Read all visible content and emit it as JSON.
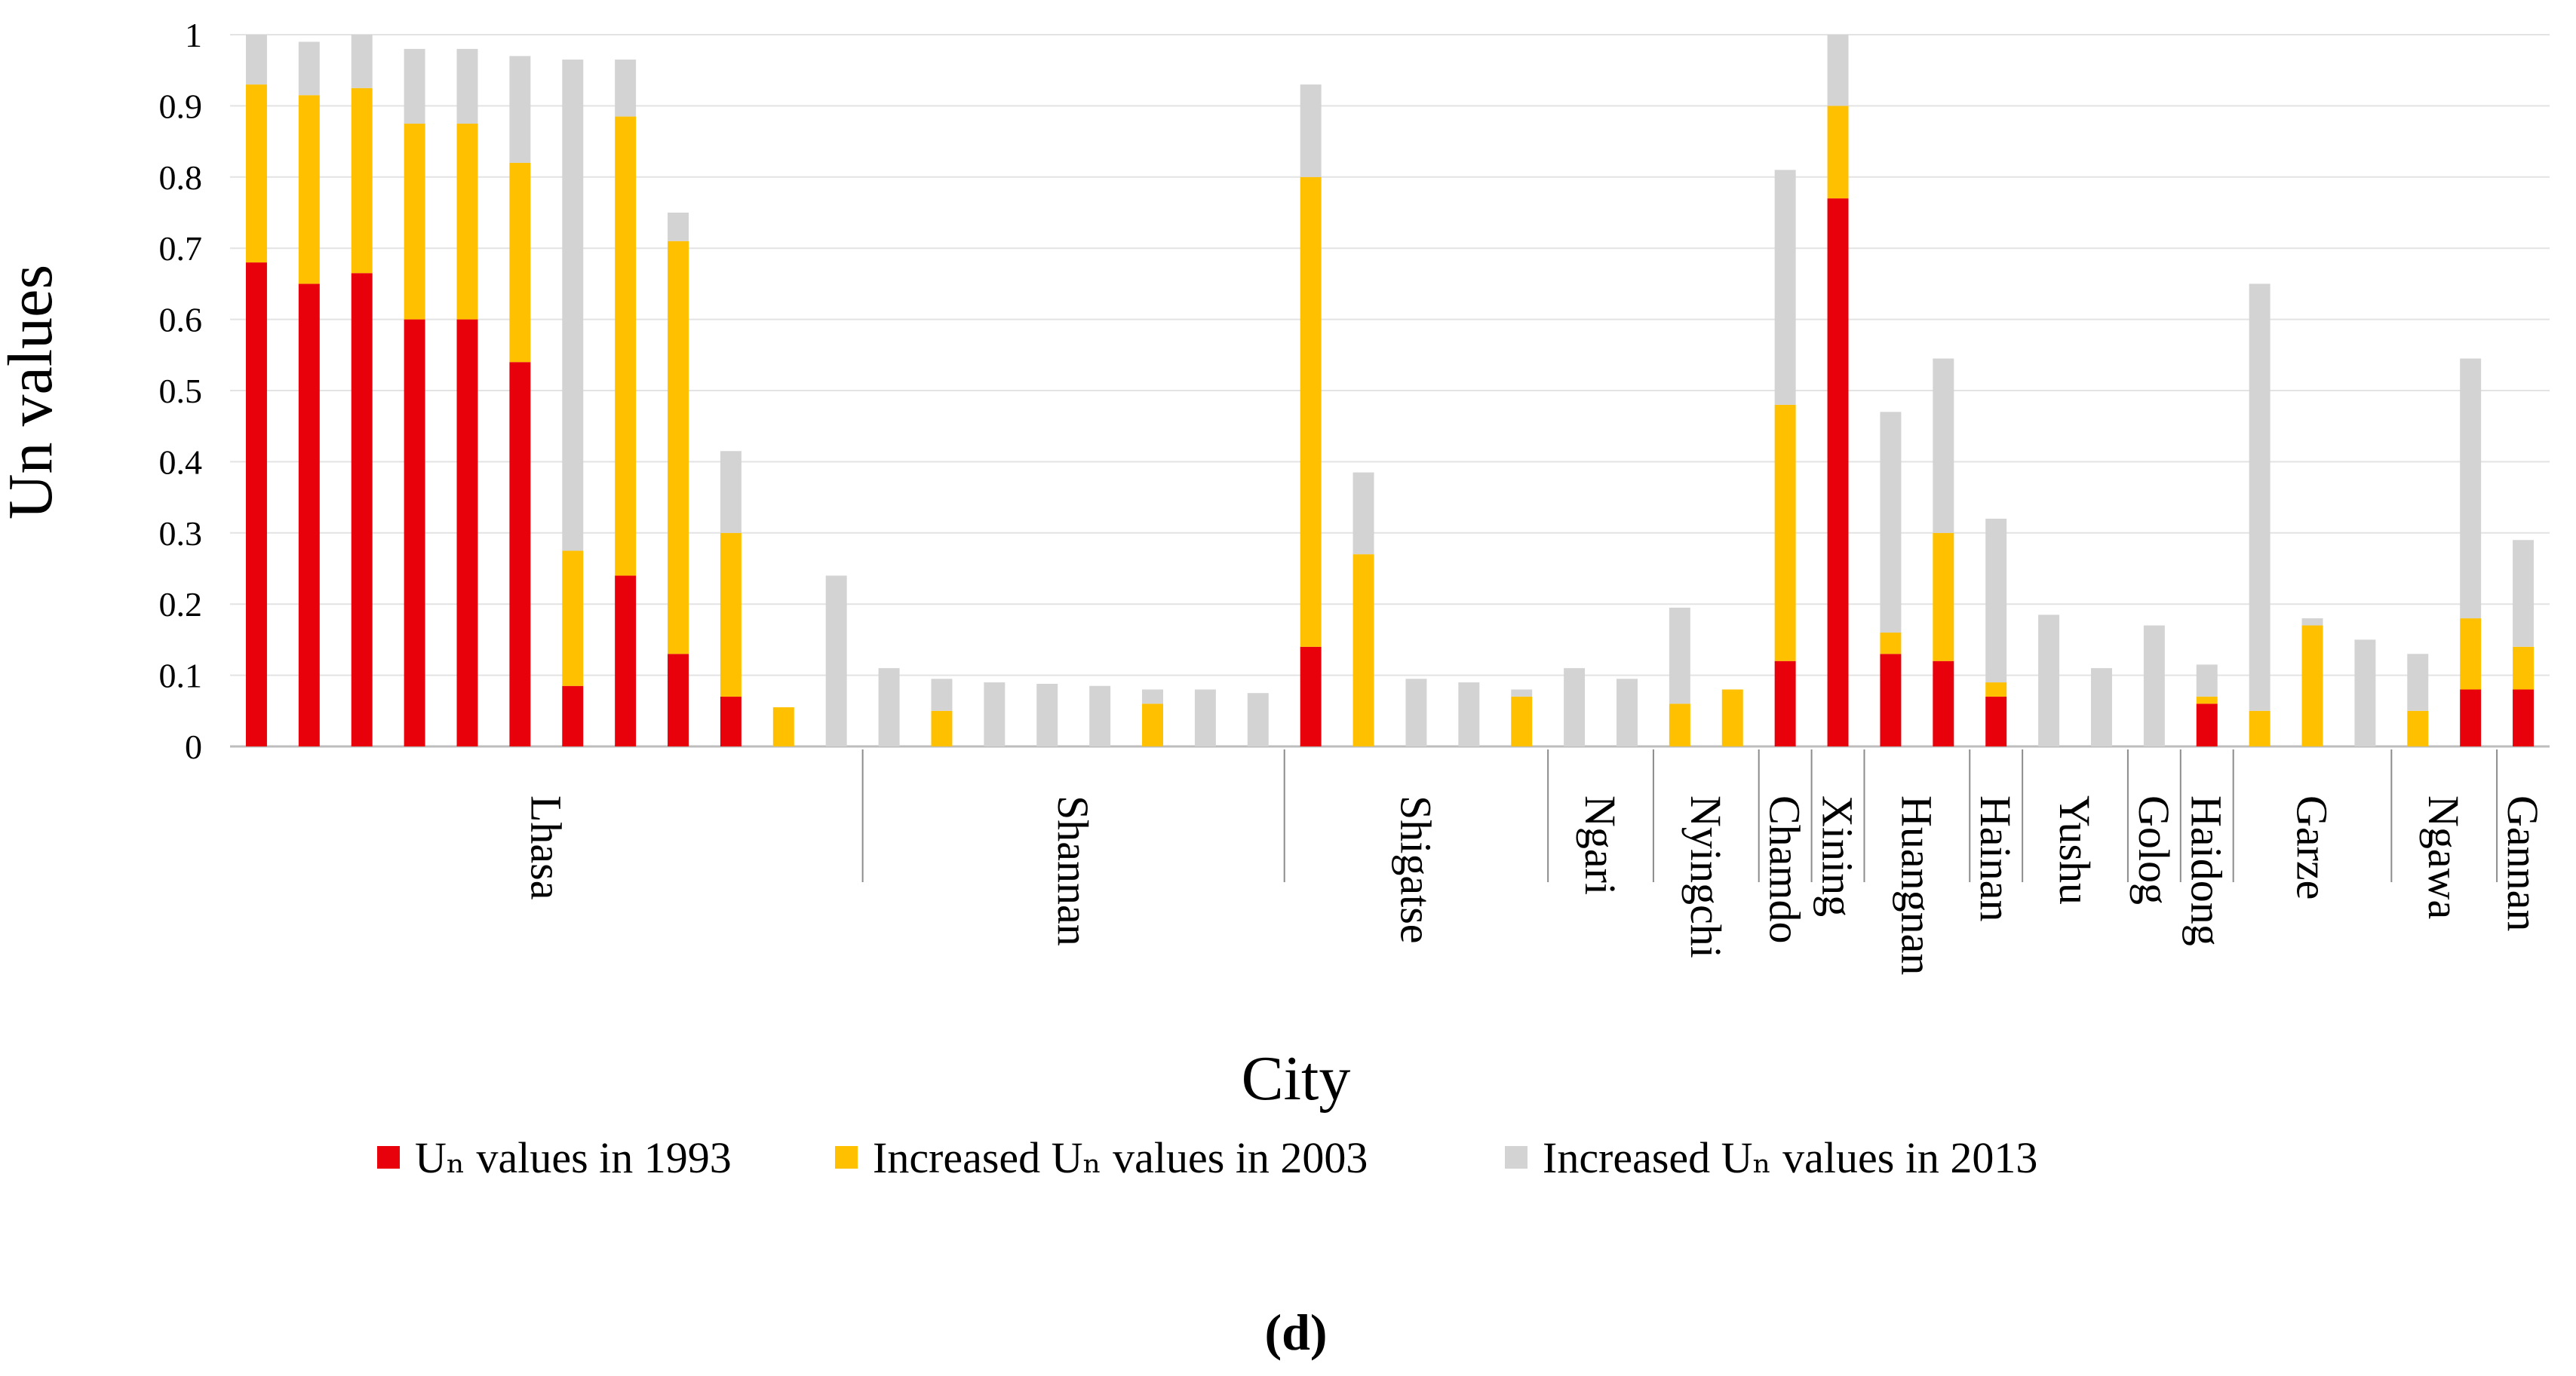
{
  "chart_data": {
    "type": "bar",
    "stacked": true,
    "xlabel": "City",
    "ylabel": "Un values",
    "ylim": [
      0,
      1
    ],
    "yticks": [
      "0",
      "0.1",
      "0.2",
      "0.3",
      "0.4",
      "0.5",
      "0.6",
      "0.7",
      "0.8",
      "0.9",
      "1"
    ],
    "grid": true,
    "panel_label": "(d)",
    "legend_position": "bottom",
    "series": [
      {
        "name": "Uₙ  values in 1993",
        "color": "#e8000b"
      },
      {
        "name": "Increased  Uₙ values in 2003",
        "color": "#ffc000"
      },
      {
        "name": "Increased  Uₙ values in 2013",
        "color": "#d3d3d3"
      }
    ],
    "groups": [
      {
        "city": "Lhasa",
        "bars": [
          [
            0.68,
            0.25,
            0.07
          ],
          [
            0.65,
            0.265,
            0.075
          ],
          [
            0.665,
            0.26,
            0.075
          ],
          [
            0.6,
            0.275,
            0.105
          ],
          [
            0.6,
            0.275,
            0.105
          ],
          [
            0.54,
            0.28,
            0.15
          ],
          [
            0.085,
            0.19,
            0.69
          ],
          [
            0.24,
            0.645,
            0.08
          ],
          [
            0.13,
            0.58,
            0.04
          ],
          [
            0.07,
            0.23,
            0.115
          ],
          [
            0,
            0.055,
            0
          ],
          [
            0,
            0,
            0.24
          ]
        ]
      },
      {
        "city": "Shannan",
        "bars": [
          [
            0,
            0,
            0.11
          ],
          [
            0,
            0.05,
            0.045
          ],
          [
            0,
            0,
            0.09
          ],
          [
            0,
            0,
            0.088
          ],
          [
            0,
            0,
            0.085
          ],
          [
            0,
            0.06,
            0.02
          ],
          [
            0,
            0,
            0.08
          ],
          [
            0,
            0,
            0.075
          ]
        ]
      },
      {
        "city": "Shigatse",
        "bars": [
          [
            0.14,
            0.66,
            0.13
          ],
          [
            0,
            0.27,
            0.115
          ],
          [
            0,
            0,
            0.095
          ],
          [
            0,
            0,
            0.09
          ],
          [
            0,
            0.07,
            0.01
          ]
        ]
      },
      {
        "city": "Ngari",
        "bars": [
          [
            0,
            0,
            0.11
          ],
          [
            0,
            0,
            0.095
          ]
        ]
      },
      {
        "city": "Nyingchi",
        "bars": [
          [
            0,
            0.06,
            0.135
          ],
          [
            0,
            0.08,
            0
          ]
        ]
      },
      {
        "city": "Chamdo",
        "bars": [
          [
            0.12,
            0.36,
            0.33
          ]
        ]
      },
      {
        "city": "Xining",
        "bars": [
          [
            0.77,
            0.13,
            0.1
          ]
        ]
      },
      {
        "city": "Huangnan",
        "bars": [
          [
            0.13,
            0.03,
            0.31
          ],
          [
            0.12,
            0.18,
            0.245
          ]
        ]
      },
      {
        "city": "Hainan",
        "bars": [
          [
            0.07,
            0.02,
            0.23
          ]
        ]
      },
      {
        "city": "Yushu",
        "bars": [
          [
            0,
            0,
            0.185
          ],
          [
            0,
            0,
            0.11
          ]
        ]
      },
      {
        "city": "Golog",
        "bars": [
          [
            0,
            0,
            0.17
          ]
        ]
      },
      {
        "city": "Haidong",
        "bars": [
          [
            0.06,
            0.01,
            0.045
          ]
        ]
      },
      {
        "city": "Garze",
        "bars": [
          [
            0,
            0.05,
            0.6
          ],
          [
            0,
            0.17,
            0.01
          ],
          [
            0,
            0,
            0.15
          ]
        ]
      },
      {
        "city": "Ngawa",
        "bars": [
          [
            0,
            0.05,
            0.08
          ],
          [
            0.08,
            0.1,
            0.365
          ]
        ]
      },
      {
        "city": "Gannan",
        "bars": [
          [
            0.08,
            0.06,
            0.15
          ]
        ]
      }
    ]
  }
}
